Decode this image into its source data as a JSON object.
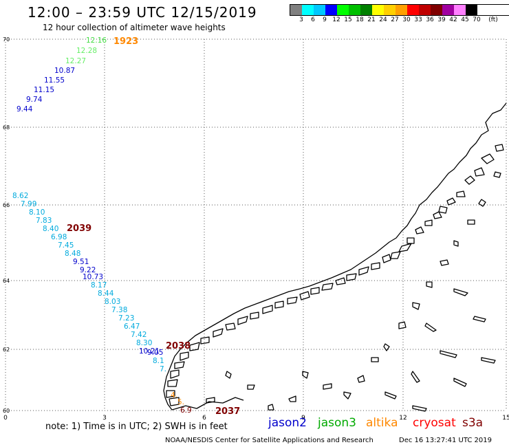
{
  "header": {
    "title": "12:00 – 23:59 UTC 12/15/2019",
    "subtitle": "12 hour collection of altimeter wave heights"
  },
  "legend": {
    "unit": "(ft)",
    "bins": [
      {
        "label": "3",
        "color": "#808080"
      },
      {
        "label": "6",
        "color": "#00ffff"
      },
      {
        "label": "9",
        "color": "#00c8ff"
      },
      {
        "label": "12",
        "color": "#0000ff"
      },
      {
        "label": "15",
        "color": "#00ff00"
      },
      {
        "label": "18",
        "color": "#00c000"
      },
      {
        "label": "21",
        "color": "#008000"
      },
      {
        "label": "24",
        "color": "#ffff00"
      },
      {
        "label": "27",
        "color": "#ffd000"
      },
      {
        "label": "30",
        "color": "#ffa000"
      },
      {
        "label": "33",
        "color": "#ff0000"
      },
      {
        "label": "36",
        "color": "#c00000"
      },
      {
        "label": "39",
        "color": "#800000"
      },
      {
        "label": "42",
        "color": "#a000a0"
      },
      {
        "label": "45",
        "color": "#ff80ff"
      },
      {
        "label": "70",
        "color": "#000000"
      }
    ]
  },
  "axes": {
    "lon_ticks": [
      "0",
      "3",
      "6",
      "9",
      "12",
      "15"
    ],
    "lat_ticks": [
      "70",
      "68",
      "66",
      "64",
      "62",
      "60"
    ]
  },
  "tracks": [
    {
      "id": "north",
      "points": [
        {
          "v": "12.16",
          "c": "#44dd44"
        },
        {
          "v": "12.28",
          "c": "#66ee66"
        },
        {
          "v": "12.27",
          "c": "#66ee66"
        },
        {
          "v": "10.87",
          "c": "#0000cc"
        },
        {
          "v": "11.55",
          "c": "#0000cc"
        },
        {
          "v": "11.15",
          "c": "#0000cc"
        },
        {
          "v": "9.74",
          "c": "#0000cc"
        },
        {
          "v": "9.44",
          "c": "#0000cc"
        }
      ]
    },
    {
      "id": "south",
      "points": [
        {
          "v": "8.62",
          "c": "#00aadd"
        },
        {
          "v": "7.99",
          "c": "#00aadd"
        },
        {
          "v": "8.10",
          "c": "#00aadd"
        },
        {
          "v": "7.83",
          "c": "#00aadd"
        },
        {
          "v": "8.40",
          "c": "#00aadd"
        },
        {
          "v": "6.98",
          "c": "#00aadd"
        },
        {
          "v": "7.45",
          "c": "#00aadd"
        },
        {
          "v": "8.48",
          "c": "#00aadd"
        },
        {
          "v": "9.51",
          "c": "#0000cc"
        },
        {
          "v": "9.22",
          "c": "#0000cc"
        },
        {
          "v": "10.73",
          "c": "#0000cc"
        },
        {
          "v": "8.17",
          "c": "#00aadd"
        },
        {
          "v": "8.44",
          "c": "#00aadd"
        },
        {
          "v": "8.03",
          "c": "#00aadd"
        },
        {
          "v": "7.38",
          "c": "#00aadd"
        },
        {
          "v": "7.23",
          "c": "#00aadd"
        },
        {
          "v": "6.47",
          "c": "#00aadd"
        },
        {
          "v": "7.42",
          "c": "#00aadd"
        },
        {
          "v": "8.30",
          "c": "#00aadd"
        },
        {
          "v": "10.21",
          "c": "#0000cc"
        },
        {
          "v": "9.05",
          "c": "#0000cc"
        },
        {
          "v": "8.1",
          "c": "#00aadd"
        },
        {
          "v": "7.",
          "c": "#00aadd"
        },
        {
          "v": "4.",
          "c": "#ff8800"
        },
        {
          "v": "5.",
          "c": "#ff8800"
        },
        {
          "v": "6.9",
          "c": "#800000"
        }
      ]
    }
  ],
  "times": [
    {
      "t": "1923",
      "c": "#ff8800"
    },
    {
      "t": "2039",
      "c": "#800000"
    },
    {
      "t": "2038",
      "c": "#800000"
    },
    {
      "t": "2037",
      "c": "#800000"
    }
  ],
  "footer": {
    "note": "note: 1) Time is in UTC; 2) SWH is in feet",
    "missions": [
      {
        "name": "jason2",
        "color": "#0000cc"
      },
      {
        "name": "jason3",
        "color": "#00aa00"
      },
      {
        "name": "altika",
        "color": "#ff8800"
      },
      {
        "name": "cryosat",
        "color": "#ff0000"
      },
      {
        "name": "s3a",
        "color": "#800000"
      }
    ],
    "credit": "NOAA/NESDIS Center for Satellite Applications and Research",
    "generated": "Dec 16 13:27:41 UTC 2019"
  }
}
